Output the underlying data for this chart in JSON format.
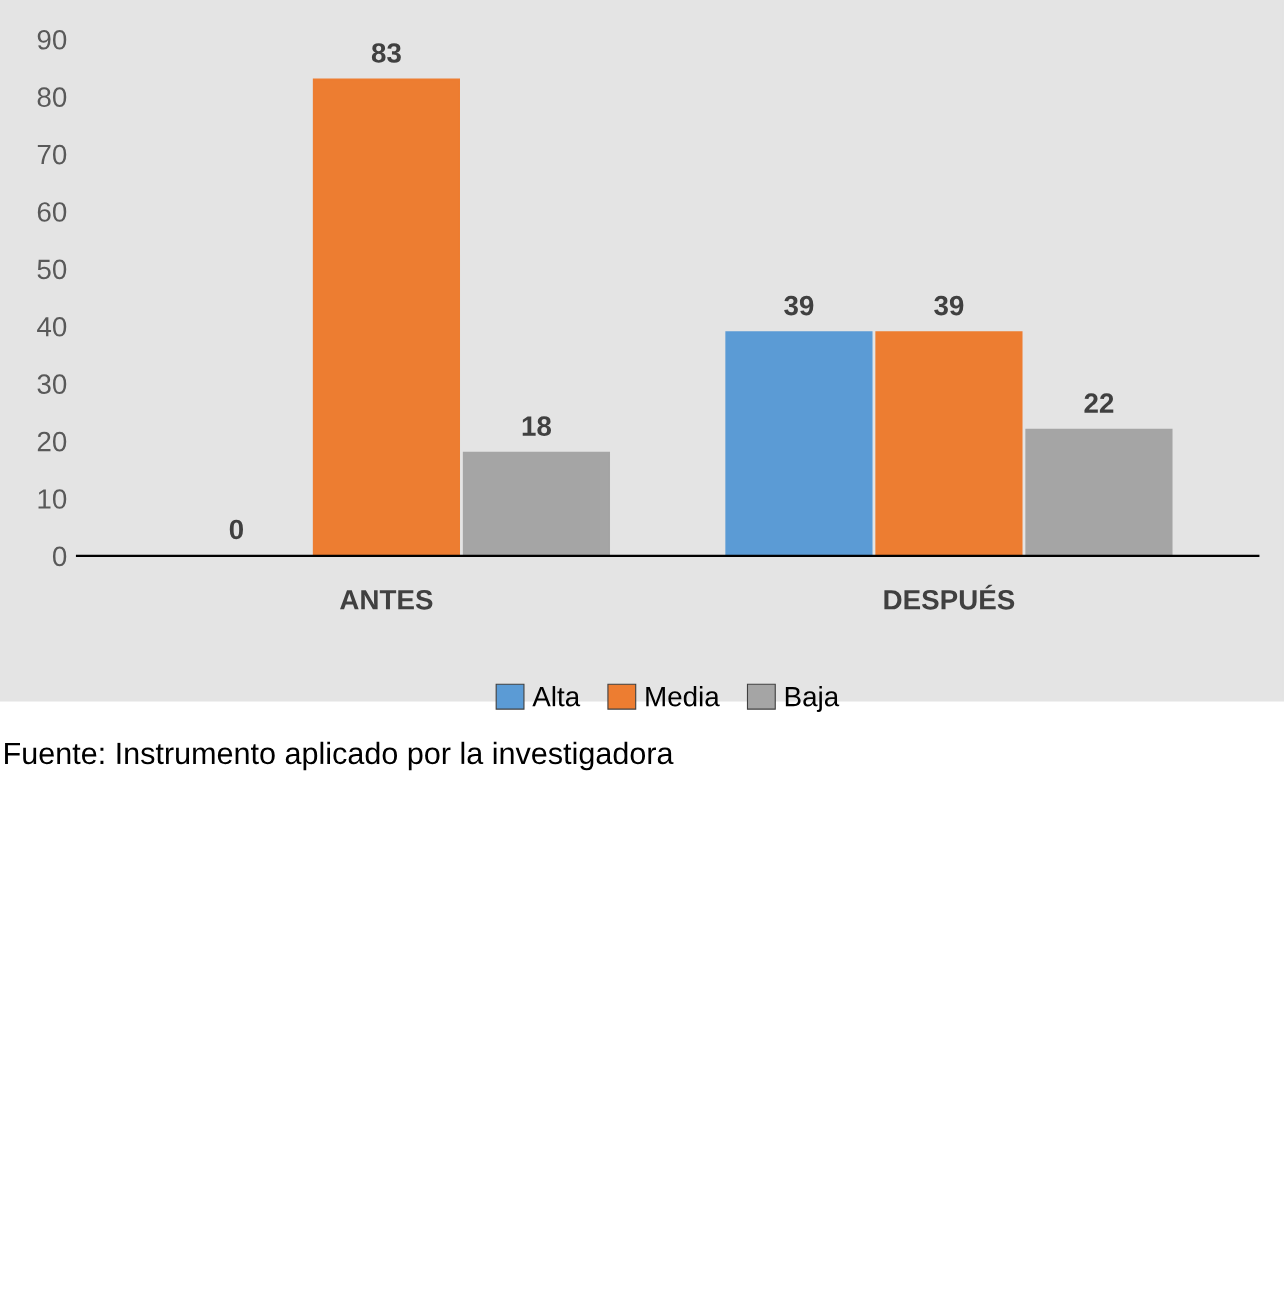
{
  "chart_data": {
    "type": "bar",
    "categories": [
      "ANTES",
      "DESPUÉS"
    ],
    "series": [
      {
        "name": "Alta",
        "color": "#5b9bd5",
        "values": [
          0,
          39
        ]
      },
      {
        "name": "Media",
        "color": "#ed7d31",
        "values": [
          83,
          39
        ]
      },
      {
        "name": "Baja",
        "color": "#a5a5a5",
        "values": [
          18,
          22
        ]
      }
    ],
    "ylim": [
      0,
      90
    ],
    "yticks": [
      0,
      10,
      20,
      30,
      40,
      50,
      60,
      70,
      80,
      90
    ],
    "data_labels": true,
    "legend": "bottom",
    "grid": false,
    "annotations": [
      "Fuente: Instrumento aplicado por la investigadora"
    ]
  }
}
